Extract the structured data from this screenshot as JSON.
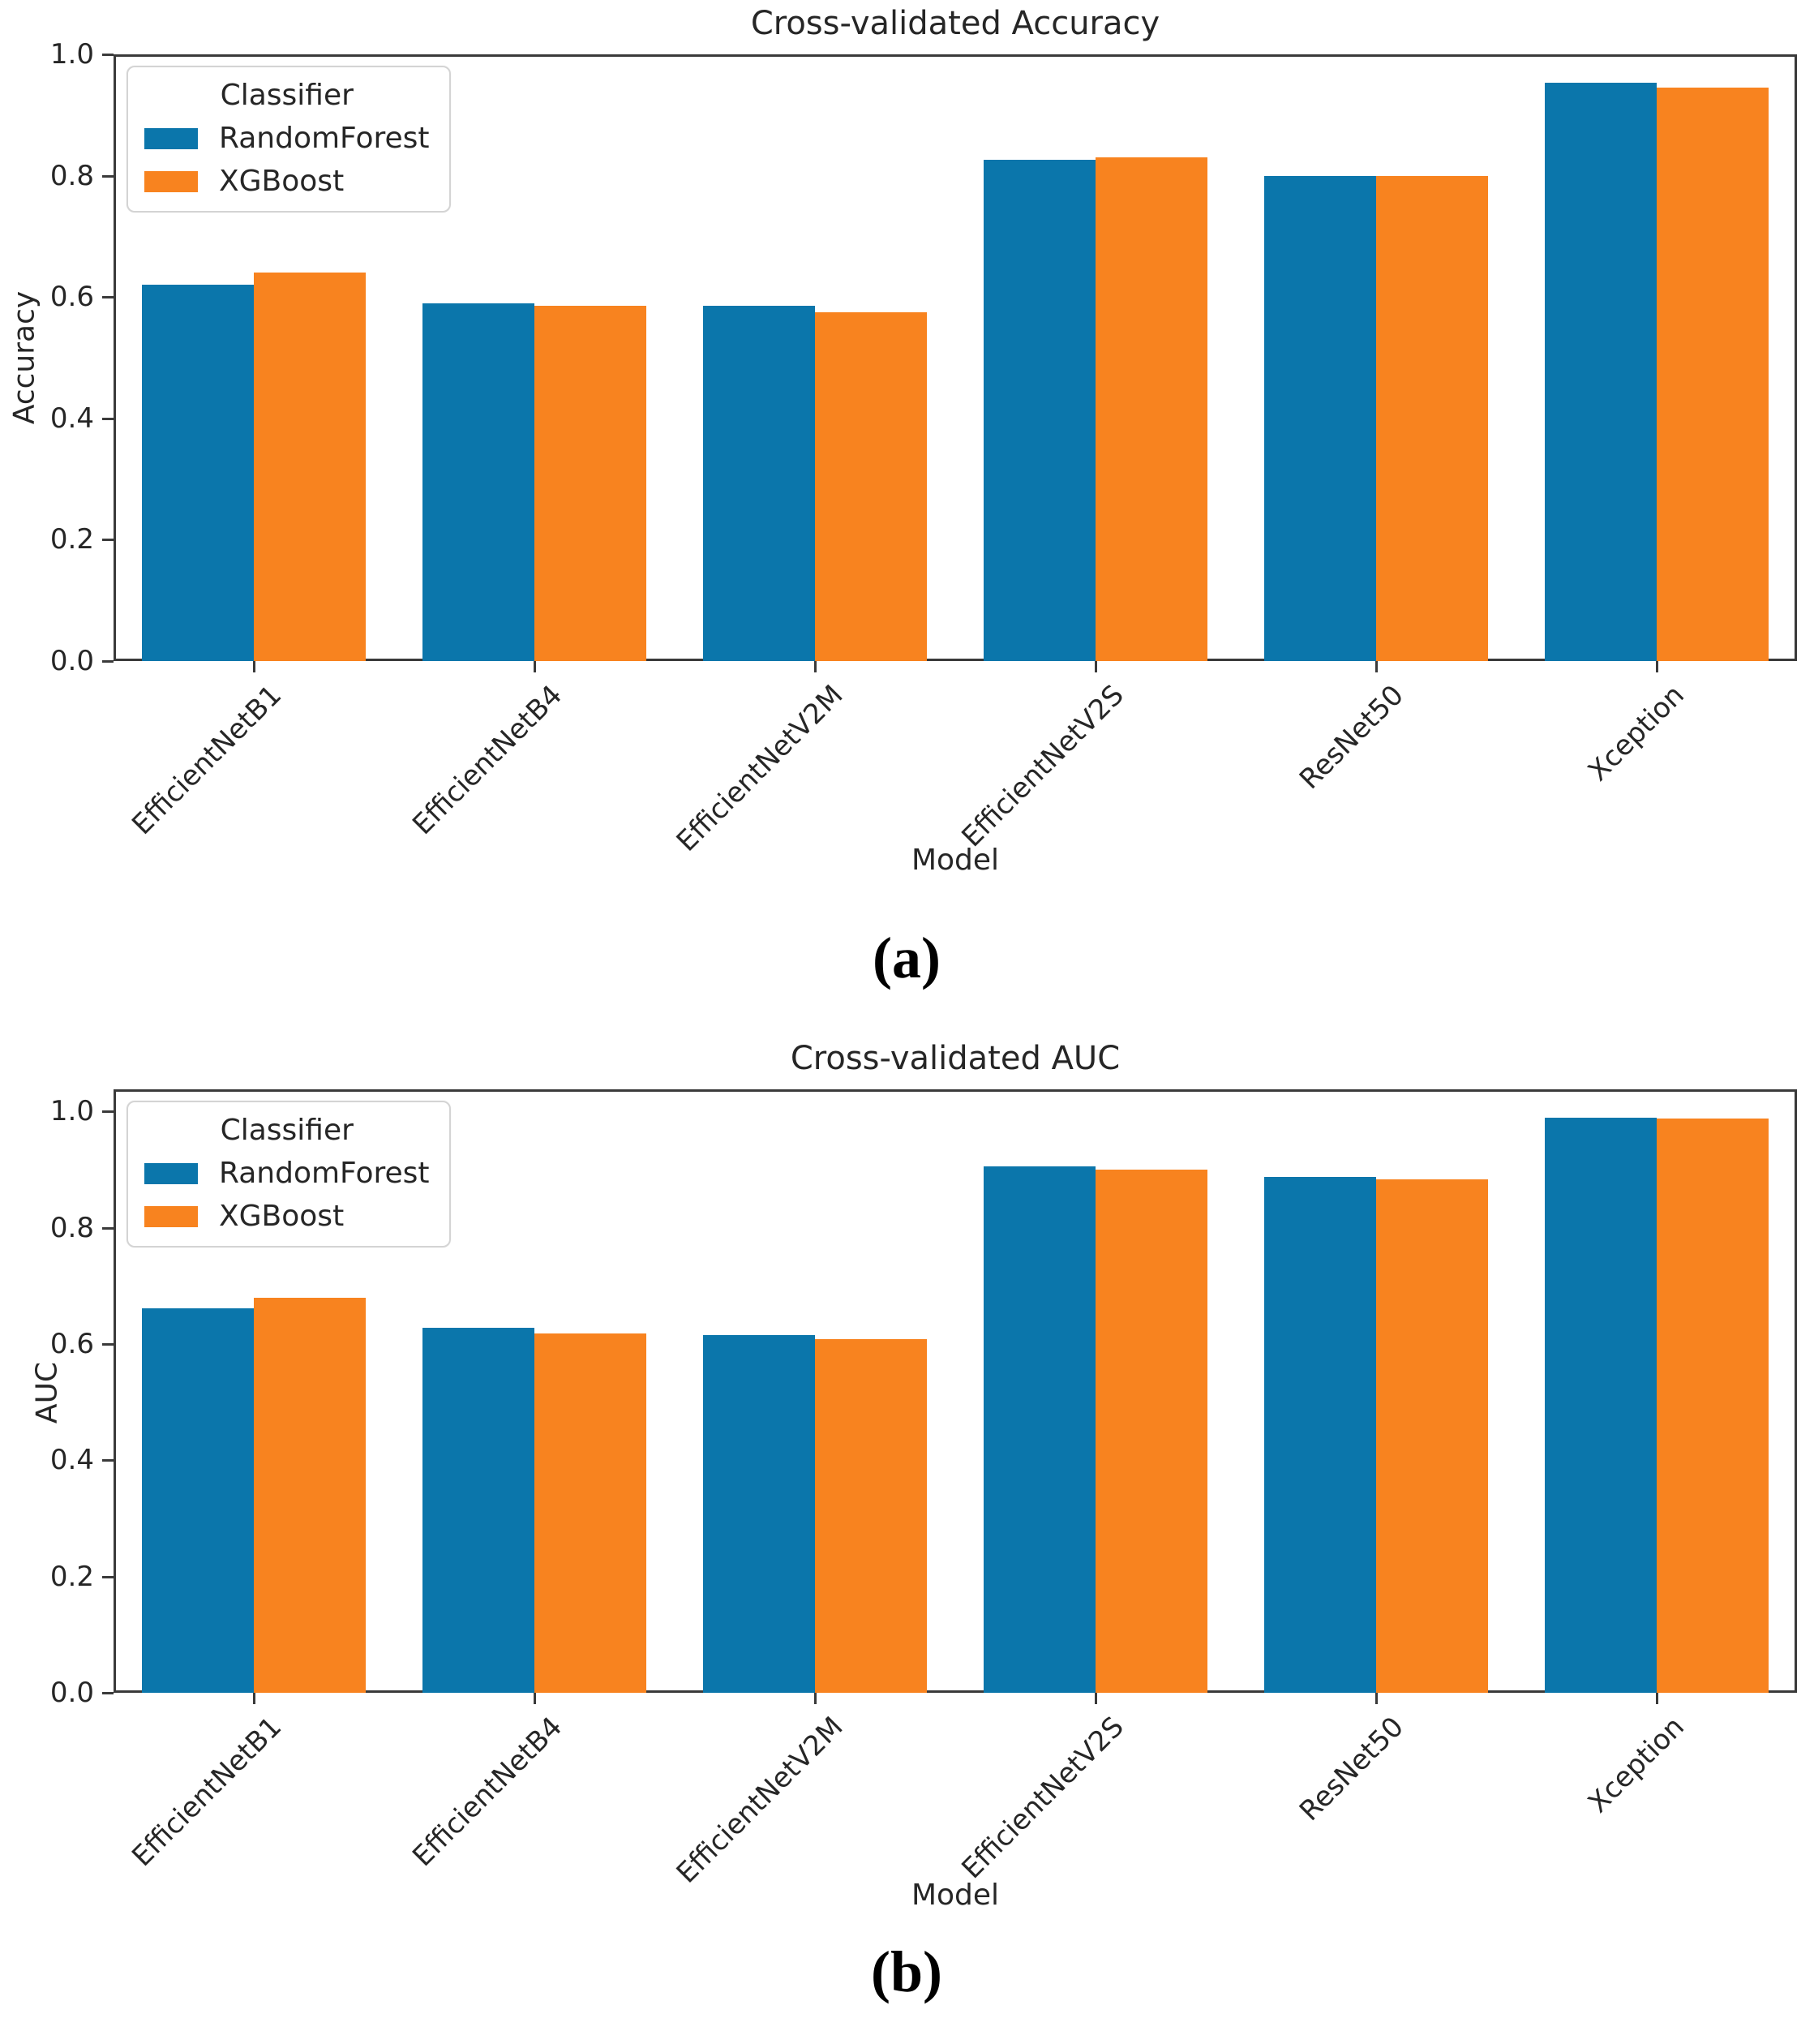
{
  "figure": {
    "background": "#ffffff",
    "spine_color": "#3a3a3a",
    "text_color": "#262626",
    "captions": {
      "a": "(a)",
      "b": "(b)"
    }
  },
  "legend": {
    "title": "Classifier",
    "entries": [
      {
        "label": "RandomForest",
        "color": "#0b76ab"
      },
      {
        "label": "XGBoost",
        "color": "#f8831f"
      }
    ],
    "position": "upper left"
  },
  "chart_data": [
    {
      "id": "a",
      "type": "bar",
      "title": "Cross-validated Accuracy",
      "xlabel": "Model",
      "ylabel": "Accuracy",
      "caption": "(a)",
      "categories": [
        "EfficientNetB1",
        "EfficientNetB4",
        "EfficientNetV2M",
        "EfficientNetV2S",
        "ResNet50",
        "Xception"
      ],
      "series": [
        {
          "name": "RandomForest",
          "color": "#0b76ab",
          "values": [
            0.62,
            0.59,
            0.585,
            0.826,
            0.8,
            0.953
          ]
        },
        {
          "name": "XGBoost",
          "color": "#f8831f",
          "values": [
            0.64,
            0.585,
            0.575,
            0.83,
            0.8,
            0.945
          ]
        }
      ],
      "ylim": [
        0,
        1.0
      ],
      "yticks": [
        0.0,
        0.2,
        0.4,
        0.6,
        0.8,
        1.0
      ],
      "grid": false,
      "legend_position": "upper left"
    },
    {
      "id": "b",
      "type": "bar",
      "title": "Cross-validated AUC",
      "xlabel": "Model",
      "ylabel": "AUC",
      "caption": "(b)",
      "categories": [
        "EfficientNetB1",
        "EfficientNetB4",
        "EfficientNetV2M",
        "EfficientNetV2S",
        "ResNet50",
        "Xception"
      ],
      "series": [
        {
          "name": "RandomForest",
          "color": "#0b76ab",
          "values": [
            0.662,
            0.628,
            0.615,
            0.905,
            0.887,
            0.989
          ]
        },
        {
          "name": "XGBoost",
          "color": "#f8831f",
          "values": [
            0.68,
            0.618,
            0.608,
            0.9,
            0.883,
            0.988
          ]
        }
      ],
      "ylim": [
        0,
        1.038
      ],
      "yticks": [
        0.0,
        0.2,
        0.4,
        0.6,
        0.8,
        1.0
      ],
      "grid": false,
      "legend_position": "upper left"
    }
  ]
}
